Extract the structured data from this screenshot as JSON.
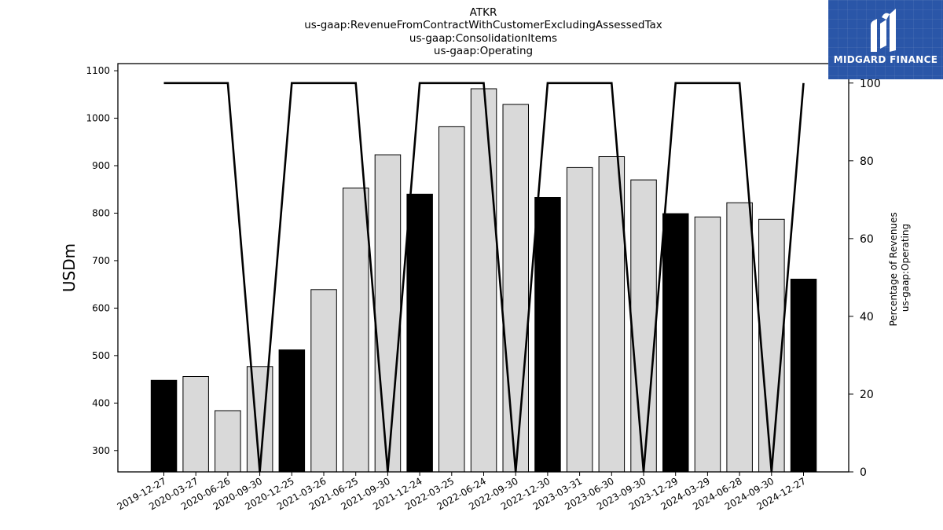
{
  "logo": {
    "name": "MIDGARD FINANCE",
    "colors": {
      "background": "#2a56a8",
      "mark": "#ffffff"
    }
  },
  "chart_data": {
    "type": "bar",
    "title_lines": [
      "ATKR",
      "us-gaap:RevenueFromContractWithCustomerExcludingAssessedTax",
      "us-gaap:ConsolidationItems",
      "us-gaap:Operating"
    ],
    "categories": [
      "2019-12-27",
      "2020-03-27",
      "2020-06-26",
      "2020-09-30",
      "2020-12-25",
      "2021-03-26",
      "2021-06-25",
      "2021-09-30",
      "2021-12-24",
      "2022-03-25",
      "2022-06-24",
      "2022-09-30",
      "2022-12-30",
      "2023-03-31",
      "2023-06-30",
      "2023-09-30",
      "2023-12-29",
      "2024-03-29",
      "2024-06-28",
      "2024-09-30",
      "2024-12-27"
    ],
    "values": [
      448,
      456,
      384,
      477,
      512,
      639,
      853,
      923,
      840,
      982,
      1062,
      1029,
      833,
      896,
      919,
      870,
      799,
      792,
      822,
      787,
      661
    ],
    "highlighted": [
      true,
      false,
      false,
      false,
      true,
      false,
      false,
      false,
      true,
      false,
      false,
      false,
      true,
      false,
      false,
      false,
      true,
      false,
      false,
      false,
      true
    ],
    "ylabel": "USDm",
    "ylim": [
      255,
      1115
    ],
    "yticks": [
      300,
      400,
      500,
      600,
      700,
      800,
      900,
      1000,
      1100
    ],
    "secondary": {
      "type": "line",
      "label_lines": [
        "Percentage of Revenues",
        "us-gaap:Operating"
      ],
      "values": [
        100,
        100,
        100,
        0,
        100,
        100,
        100,
        0,
        100,
        100,
        100,
        0,
        100,
        100,
        100,
        0,
        100,
        100,
        100,
        0,
        100
      ],
      "ylim": [
        0,
        105
      ],
      "yticks": [
        0,
        20,
        40,
        60,
        80,
        100
      ]
    },
    "colors": {
      "highlight_bar": "#000000",
      "bar": "#d9d9d9",
      "bar_edge": "#000000",
      "line": "#000000"
    },
    "grid": false,
    "legend": "none"
  }
}
